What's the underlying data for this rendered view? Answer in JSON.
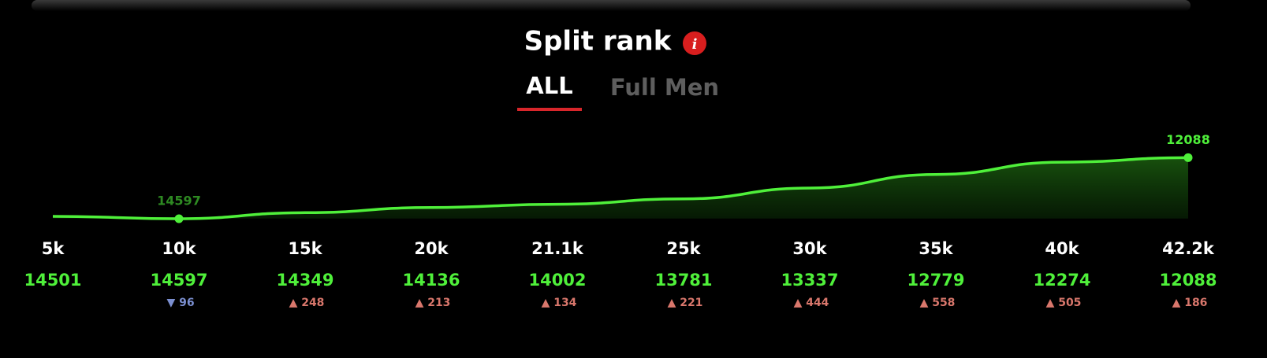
{
  "chart_data": {
    "type": "line",
    "title": "Split rank",
    "tabs": [
      "ALL",
      "Full Men"
    ],
    "categories": [
      "5k",
      "10k",
      "15k",
      "20k",
      "21.1k",
      "25k",
      "30k",
      "35k",
      "40k",
      "42.2k"
    ],
    "series": [
      {
        "color": "#4ff03a",
        "values": [
          14501,
          14597,
          14349,
          14136,
          14002,
          13781,
          13337,
          12779,
          12274,
          12088
        ]
      }
    ],
    "change_labels": [
      null,
      "▼ 96",
      "▲ 248",
      "▲ 213",
      "▲ 134",
      "▲ 221",
      "▲ 444",
      "▲ 558",
      "▲ 505",
      "▲ 186"
    ],
    "ylim": [
      14620,
      12000
    ]
  }
}
